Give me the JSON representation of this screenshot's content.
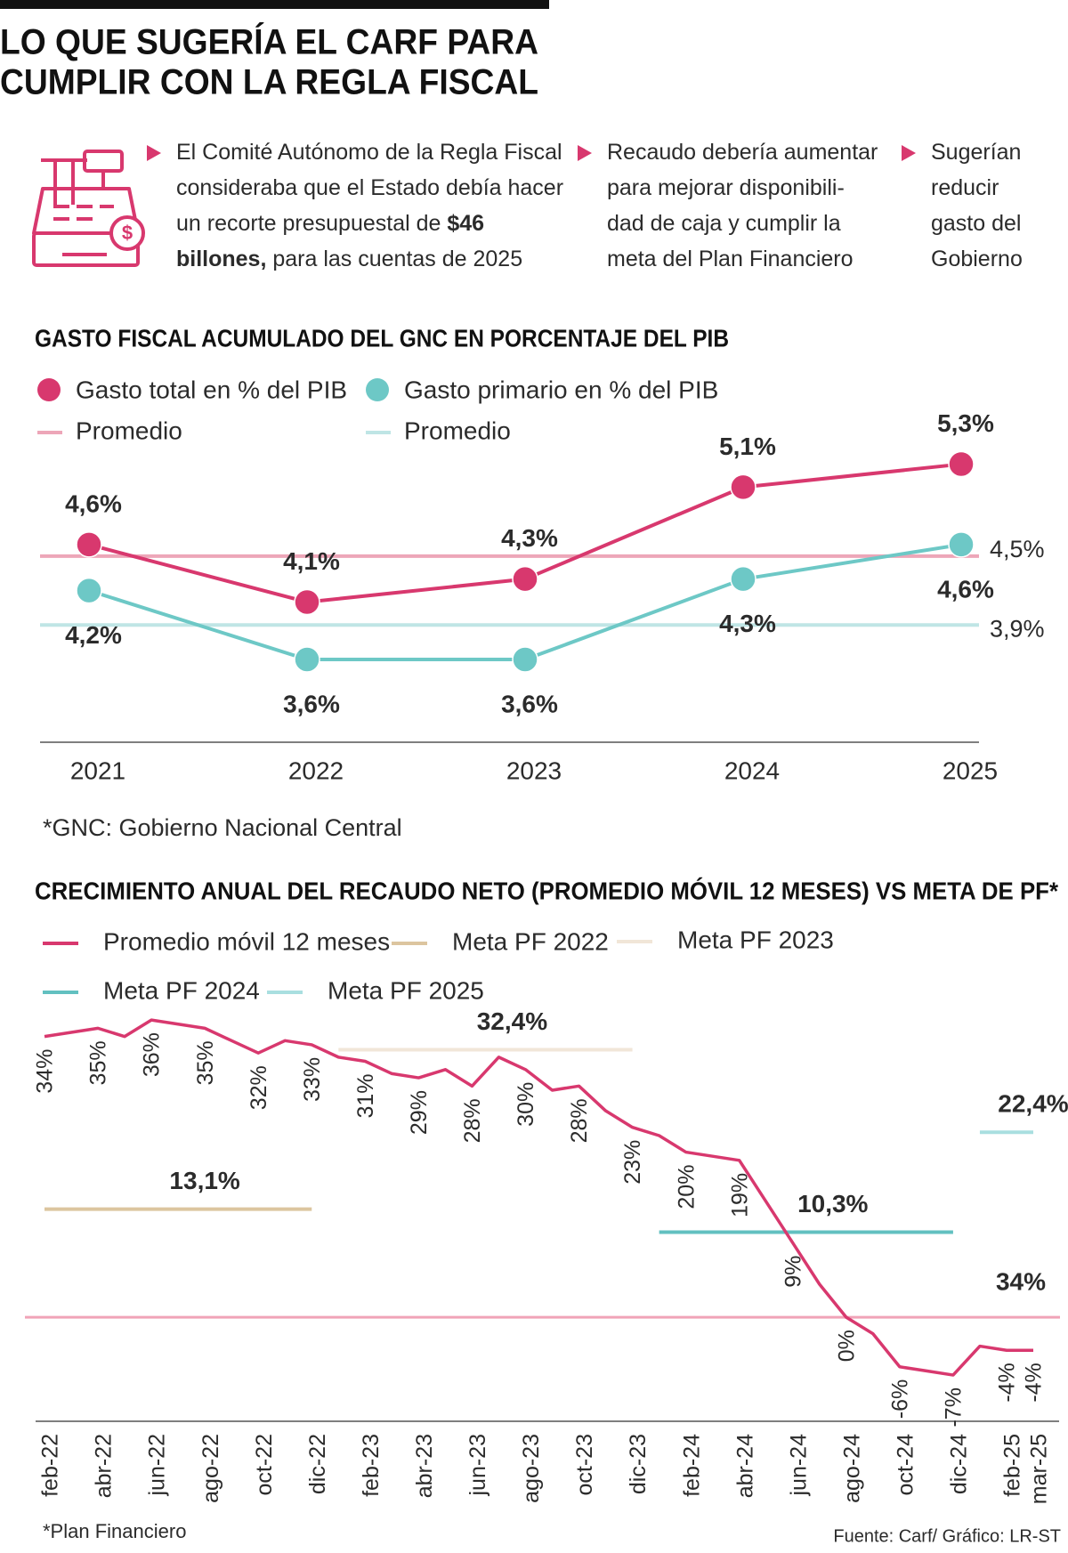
{
  "header": {
    "title_lines": [
      "LO QUE SUGERÍA EL CARF PARA",
      "CUMPLIR CON LA REGLA FISCAL"
    ]
  },
  "bullets": [
    {
      "lines": [
        [
          {
            "text": "El Comité Autónomo de la Regla Fiscal"
          }
        ],
        [
          {
            "text": "consideraba que el Estado debía hacer"
          }
        ],
        [
          {
            "text": "un recorte presupuestal de "
          },
          {
            "text": "$46",
            "bold": true
          }
        ],
        [
          {
            "text": "billones,",
            "bold": true
          },
          {
            "text": " para las cuentas de 2025"
          }
        ]
      ]
    },
    {
      "lines": [
        [
          {
            "text": "Recaudo debería aumentar"
          }
        ],
        [
          {
            "text": "para mejorar disponibili-"
          }
        ],
        [
          {
            "text": "dad de caja y cumplir la"
          }
        ],
        [
          {
            "text": "meta del Plan Financiero"
          }
        ]
      ]
    },
    {
      "lines": [
        [
          {
            "text": "Sugerían"
          }
        ],
        [
          {
            "text": "reducir"
          }
        ],
        [
          {
            "text": "gasto del"
          }
        ],
        [
          {
            "text": "Gobierno"
          }
        ]
      ]
    }
  ],
  "chart_data": [
    {
      "type": "line",
      "title": "GASTO FISCAL ACUMULADO DEL GNC EN PORCENTAJE DEL PIB",
      "categories": [
        "2021",
        "2022",
        "2023",
        "2024",
        "2025"
      ],
      "series": [
        {
          "name": "Gasto total en % del PIB",
          "color": "#d8386e",
          "values": [
            4.6,
            4.1,
            4.3,
            5.1,
            5.3
          ],
          "value_labels": [
            "4,6%",
            "4,1%",
            "4,3%",
            "5,1%",
            "5,3%"
          ]
        },
        {
          "name": "Gasto primario en % del PIB",
          "color": "#6dc8c6",
          "values": [
            4.2,
            3.6,
            3.6,
            4.3,
            4.6
          ],
          "value_labels": [
            "4,2%",
            "3,6%",
            "3,6%",
            "4,3%",
            "4,6%"
          ]
        }
      ],
      "reference_lines": [
        {
          "name": "Promedio",
          "color": "#eda6b8",
          "value": 4.5,
          "value_label": "4,5%"
        },
        {
          "name": "Promedio",
          "color": "#bfe5e5",
          "value": 3.9,
          "value_label": "3,9%"
        }
      ],
      "ylim": [
        2.88,
        5.8
      ],
      "note": "*GNC: Gobierno Nacional Central"
    },
    {
      "type": "line",
      "title": "CRECIMIENTO ANUAL DEL RECAUDO NETO (PROMEDIO MÓVIL 12 MESES) VS META DE PF*",
      "categories": [
        "feb-22",
        null,
        "abr-22",
        null,
        "jun-22",
        null,
        "ago-22",
        null,
        "oct-22",
        null,
        "dic-22",
        null,
        "feb-23",
        null,
        "abr-23",
        null,
        "jun-23",
        null,
        "ago-23",
        null,
        "oct-23",
        null,
        "dic-23",
        null,
        "feb-24",
        null,
        "abr-24",
        null,
        "jun-24",
        null,
        "ago-24",
        null,
        "oct-24",
        null,
        "dic-24",
        null,
        "feb-25",
        "mar-25"
      ],
      "series": [
        {
          "name": "Promedio móvil 12 meses",
          "color": "#d8386e",
          "values": [
            34,
            34.5,
            35,
            34,
            36,
            35.5,
            35,
            33.5,
            32,
            33.5,
            33,
            31.5,
            31,
            29.5,
            29,
            30,
            28,
            31.5,
            30,
            27.5,
            28,
            25,
            23,
            22,
            20,
            19.5,
            19,
            14,
            9,
            4,
            0,
            -2,
            -6,
            -6.5,
            -7,
            -3.5,
            -4,
            -4
          ],
          "value_labels": [
            "34%",
            null,
            "35%",
            null,
            "36%",
            null,
            "35%",
            null,
            "32%",
            null,
            "33%",
            null,
            "31%",
            null,
            "29%",
            null,
            "28%",
            null,
            "30%",
            null,
            "28%",
            null,
            "23%",
            null,
            "20%",
            null,
            "19%",
            null,
            "9%",
            null,
            "0%",
            null,
            "-6%",
            null,
            "-7%",
            null,
            "-4%",
            "-4%"
          ]
        },
        {
          "name": "Meta PF 2022",
          "color": "#dcc59f",
          "value_label": "13,1%",
          "values": [
            13.1,
            13.1,
            13.1,
            13.1,
            13.1,
            13.1,
            13.1,
            13.1,
            13.1,
            13.1,
            13.1,
            null,
            null,
            null,
            null,
            null,
            null,
            null,
            null,
            null,
            null,
            null,
            null,
            null,
            null,
            null,
            null,
            null,
            null,
            null,
            null,
            null,
            null,
            null,
            null,
            null,
            null,
            null
          ]
        },
        {
          "name": "Meta PF 2023",
          "color": "#f1e6d8",
          "value_label": "32,4%",
          "values": [
            null,
            null,
            null,
            null,
            null,
            null,
            null,
            null,
            null,
            null,
            null,
            32.4,
            32.4,
            32.4,
            32.4,
            32.4,
            32.4,
            32.4,
            32.4,
            32.4,
            32.4,
            32.4,
            32.4,
            null,
            null,
            null,
            null,
            null,
            null,
            null,
            null,
            null,
            null,
            null,
            null,
            null,
            null,
            null
          ]
        },
        {
          "name": "Meta PF 2024",
          "color": "#62c0c0",
          "value_label": "10,3%",
          "values": [
            null,
            null,
            null,
            null,
            null,
            null,
            null,
            null,
            null,
            null,
            null,
            null,
            null,
            null,
            null,
            null,
            null,
            null,
            null,
            null,
            null,
            null,
            null,
            10.3,
            10.3,
            10.3,
            10.3,
            10.3,
            10.3,
            10.3,
            10.3,
            10.3,
            10.3,
            10.3,
            10.3,
            null,
            null,
            null
          ]
        },
        {
          "name": "Meta PF 2025",
          "color": "#a9dfe0",
          "value_label": "22,4%",
          "values": [
            null,
            null,
            null,
            null,
            null,
            null,
            null,
            null,
            null,
            null,
            null,
            null,
            null,
            null,
            null,
            null,
            null,
            null,
            null,
            null,
            null,
            null,
            null,
            null,
            null,
            null,
            null,
            null,
            null,
            null,
            null,
            null,
            null,
            null,
            null,
            22.4,
            22.4,
            22.4
          ]
        }
      ],
      "zero_line": true,
      "annotation": "34%",
      "ylim": [
        -12.6,
        40
      ],
      "note": "*Plan Financiero",
      "source": "Fuente: Carf/ Gráfico: LR-ST"
    }
  ]
}
